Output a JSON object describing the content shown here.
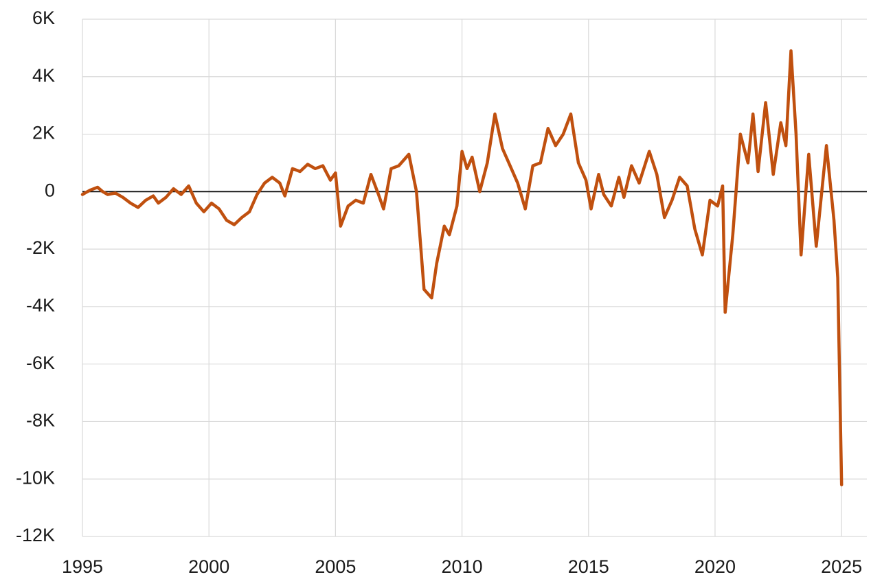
{
  "chart_data": {
    "type": "line",
    "x": [
      1995.0,
      1995.3,
      1995.6,
      1995.8,
      1996.0,
      1996.3,
      1996.6,
      1996.9,
      1997.2,
      1997.5,
      1997.8,
      1998.0,
      1998.3,
      1998.6,
      1998.9,
      1999.2,
      1999.5,
      1999.8,
      2000.1,
      2000.4,
      2000.7,
      2001.0,
      2001.3,
      2001.6,
      2001.9,
      2002.2,
      2002.5,
      2002.8,
      2003.0,
      2003.3,
      2003.6,
      2003.9,
      2004.2,
      2004.5,
      2004.8,
      2005.0,
      2005.2,
      2005.5,
      2005.8,
      2006.1,
      2006.4,
      2006.7,
      2006.9,
      2007.2,
      2007.5,
      2007.9,
      2008.2,
      2008.5,
      2008.8,
      2009.0,
      2009.3,
      2009.5,
      2009.8,
      2010.0,
      2010.2,
      2010.4,
      2010.7,
      2011.0,
      2011.3,
      2011.6,
      2011.9,
      2012.2,
      2012.5,
      2012.8,
      2013.1,
      2013.4,
      2013.7,
      2014.0,
      2014.3,
      2014.6,
      2014.9,
      2015.1,
      2015.4,
      2015.6,
      2015.9,
      2016.2,
      2016.4,
      2016.7,
      2017.0,
      2017.4,
      2017.7,
      2018.0,
      2018.3,
      2018.6,
      2018.9,
      2019.2,
      2019.5,
      2019.8,
      2020.1,
      2020.3,
      2020.4,
      2020.7,
      2021.0,
      2021.3,
      2021.5,
      2021.7,
      2022.0,
      2022.3,
      2022.6,
      2022.8,
      2023.0,
      2023.2,
      2023.4,
      2023.7,
      2024.0,
      2024.4,
      2024.7,
      2024.85,
      2025.0
    ],
    "series": [
      {
        "color": "#c0500f",
        "values": [
          -100,
          50,
          150,
          0,
          -100,
          -50,
          -200,
          -400,
          -550,
          -300,
          -150,
          -400,
          -200,
          100,
          -100,
          200,
          -400,
          -700,
          -400,
          -600,
          -1000,
          -1150,
          -900,
          -700,
          -100,
          300,
          500,
          300,
          -150,
          800,
          700,
          950,
          800,
          900,
          400,
          650,
          -1200,
          -500,
          -300,
          -400,
          600,
          -100,
          -600,
          800,
          900,
          1300,
          0,
          -3400,
          -3700,
          -2500,
          -1200,
          -1500,
          -500,
          1400,
          800,
          1200,
          0,
          1000,
          2700,
          1500,
          900,
          300,
          -600,
          900,
          1000,
          2200,
          1600,
          2000,
          2700,
          1000,
          400,
          -600,
          600,
          -100,
          -500,
          500,
          -200,
          900,
          300,
          1400,
          600,
          -900,
          -300,
          500,
          200,
          -1300,
          -2200,
          -300,
          -500,
          200,
          -4200,
          -1500,
          2000,
          1000,
          2700,
          700,
          3100,
          600,
          2400,
          1600,
          4900,
          2000,
          -2200,
          1300,
          -1900,
          1600,
          -1000,
          -3000,
          -10200
        ]
      }
    ],
    "xlim": [
      1995,
      2026
    ],
    "xticks": [
      1995,
      2000,
      2005,
      2010,
      2015,
      2020,
      2025
    ],
    "ylim": [
      -12000,
      6000
    ],
    "yticks": [
      {
        "value": -12000,
        "label": "-12K"
      },
      {
        "value": -10000,
        "label": "-10K"
      },
      {
        "value": -8000,
        "label": "-8K"
      },
      {
        "value": -6000,
        "label": "-6K"
      },
      {
        "value": -4000,
        "label": "-4K"
      },
      {
        "value": -2000,
        "label": "-2K"
      },
      0,
      {
        "value": 2000,
        "label": "2K"
      },
      {
        "value": 4000,
        "label": "4K"
      },
      {
        "value": 6000,
        "label": "6K"
      }
    ],
    "grid": true
  }
}
